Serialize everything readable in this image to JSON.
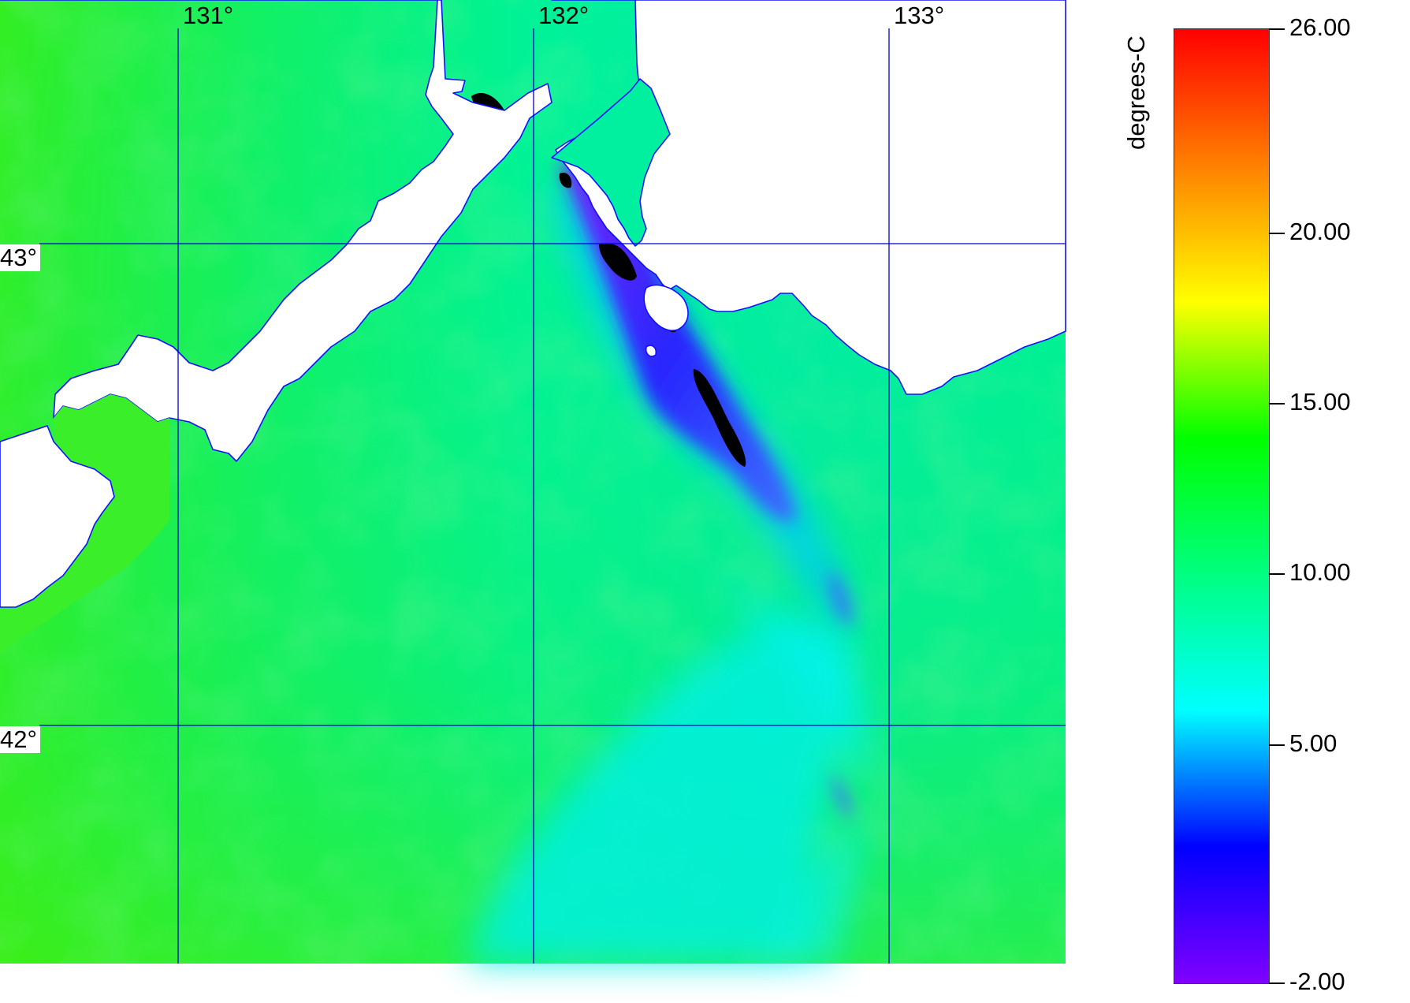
{
  "map": {
    "lon_labels": [
      "131°",
      "132°",
      "133°"
    ],
    "lat_labels": [
      "43°",
      "42°"
    ],
    "lon_values": [
      131,
      132,
      133
    ],
    "lat_values": [
      43,
      42
    ],
    "gridline_color": "#0000cc",
    "coastline_color": "#0000ff",
    "land_color": "#ffffff",
    "cloud_mask_color": "#000000"
  },
  "colorbar": {
    "title": "degrees-C",
    "min": -2.0,
    "max": 26.0,
    "tick_labels": [
      "26.00",
      "20.00",
      "15.00",
      "10.00",
      "5.00",
      "-2.00"
    ],
    "tick_values": [
      26,
      20,
      15,
      10,
      5,
      -2
    ],
    "colors": [
      "#8000ff",
      "#0000ff",
      "#00ffff",
      "#00ff80",
      "#00ff00",
      "#ffff00",
      "#ff8000",
      "#ff0000"
    ]
  }
}
